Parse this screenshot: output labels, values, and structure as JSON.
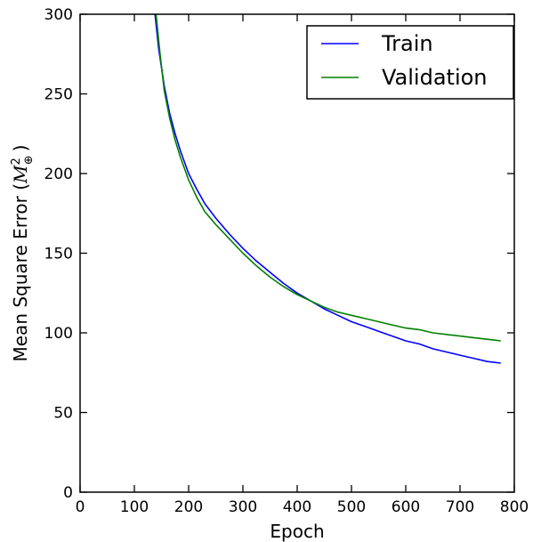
{
  "chart_data": {
    "type": "line",
    "title": "",
    "xlabel": "Epoch",
    "ylabel_text": "Mean Square Error (",
    "ylabel_symbol": "M",
    "ylabel_superscript": "2",
    "ylabel_subscript": "⊕",
    "ylabel_close": ")",
    "xlim": [
      0,
      800
    ],
    "ylim": [
      0,
      300
    ],
    "xticks": [
      0,
      100,
      200,
      300,
      400,
      500,
      600,
      700,
      800
    ],
    "yticks": [
      0,
      50,
      100,
      150,
      200,
      250,
      300
    ],
    "grid": false,
    "legend_position": "top-right",
    "series": [
      {
        "name": "Train",
        "color": "#0000ff",
        "x": [
          138,
          145,
          155,
          165,
          175,
          185,
          200,
          215,
          230,
          250,
          275,
          300,
          325,
          350,
          375,
          400,
          425,
          450,
          475,
          500,
          525,
          550,
          575,
          600,
          625,
          650,
          675,
          700,
          725,
          750,
          775
        ],
        "y": [
          300,
          278,
          255,
          238,
          225,
          214,
          200,
          190,
          181,
          172,
          162,
          153,
          145,
          138,
          131,
          125,
          120,
          115,
          111,
          107,
          104,
          101,
          98,
          95,
          93,
          90,
          88,
          86,
          84,
          82,
          81
        ]
      },
      {
        "name": "Validation",
        "color": "#008000",
        "x": [
          140,
          147,
          155,
          165,
          175,
          185,
          200,
          215,
          230,
          250,
          275,
          300,
          325,
          350,
          375,
          400,
          425,
          450,
          475,
          500,
          525,
          550,
          575,
          600,
          625,
          650,
          675,
          700,
          725,
          750,
          775
        ],
        "y": [
          300,
          276,
          252,
          235,
          221,
          210,
          196,
          185,
          176,
          168,
          159,
          150,
          142,
          135,
          129,
          124,
          120,
          116,
          113,
          111,
          109,
          107,
          105,
          103,
          102,
          100,
          99,
          98,
          97,
          96,
          95
        ]
      }
    ]
  }
}
